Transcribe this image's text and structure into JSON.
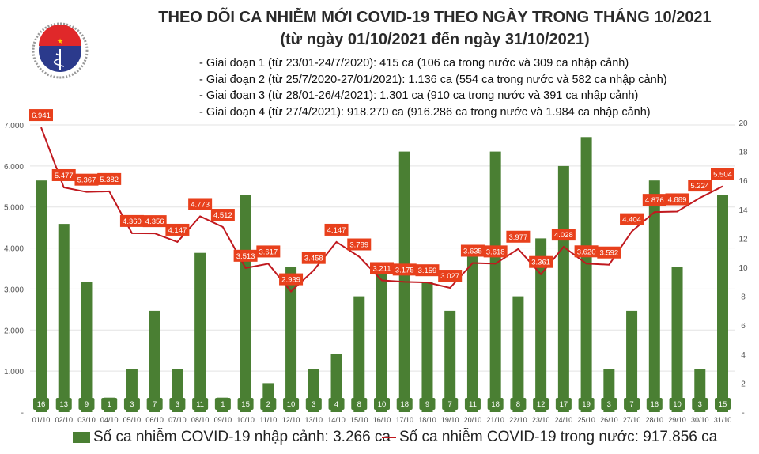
{
  "header": {
    "title_line1": "THEO DÕI CA NHIỄM MỚI COVID-19 THEO NGÀY TRONG THÁNG 10/2021",
    "title_line2": "(từ ngày 01/10/2021 đến ngày 31/10/2021)",
    "notes": [
      "- Giai đoạn 1 (từ 23/01-24/7/2020): 415 ca (106 ca trong nước và 309 ca nhập cảnh)",
      "- Giai đoạn 2 (từ 25/7/2020-27/01/2021): 1.136 ca (554 ca trong nước và 582 ca nhập cảnh)",
      "- Giai đoạn 3 (từ 28/01-26/4/2021): 1.301 ca (910 ca trong nước và 391 ca nhập cảnh)",
      "- Giai đoạn 4 (từ 27/4/2021): 918.270 ca (916.286 ca trong nước và 1.984 ca nhập cảnh)"
    ]
  },
  "logo": {
    "text_top": "BỘ Y TẾ",
    "text_bottom": "MINISTRY OF HEALTH"
  },
  "chart_data": {
    "type": "bar+line",
    "categories": [
      "01/10",
      "02/10",
      "03/10",
      "04/10",
      "05/10",
      "06/10",
      "07/10",
      "08/10",
      "09/10",
      "10/10",
      "11/10",
      "12/10",
      "13/10",
      "14/10",
      "15/10",
      "16/10",
      "17/10",
      "18/10",
      "19/10",
      "20/10",
      "21/10",
      "22/10",
      "23/10",
      "24/10",
      "25/10",
      "26/10",
      "27/10",
      "28/10",
      "29/10",
      "30/10",
      "31/10"
    ],
    "series": [
      {
        "name": "Số ca nhiễm COVID-19 nhập cảnh: 3.266 ca",
        "type": "bar",
        "axis": "right",
        "color": "#4a7f33",
        "values": [
          16,
          13,
          9,
          1,
          3,
          7,
          3,
          11,
          1,
          15,
          2,
          10,
          3,
          4,
          8,
          10,
          18,
          9,
          7,
          11,
          18,
          8,
          12,
          17,
          19,
          3,
          7,
          16,
          10,
          3,
          15
        ]
      },
      {
        "name": "Số ca nhiễm COVID-19 trong nước: 917.856 ca",
        "type": "line",
        "axis": "left",
        "color": "#c0181e",
        "label_color": "#e8401c",
        "values": [
          6941,
          5477,
          5367,
          5382,
          4360,
          4356,
          4147,
          4773,
          4512,
          3513,
          3617,
          2939,
          3458,
          4147,
          3789,
          3211,
          3175,
          3159,
          3027,
          3635,
          3618,
          3977,
          3361,
          4028,
          3620,
          3592,
          4404,
          4876,
          4889,
          5224,
          5504
        ]
      }
    ],
    "left_axis": {
      "ylim": [
        0,
        7000
      ],
      "ticks": [
        "-",
        "1.000",
        "2.000",
        "3.000",
        "4.000",
        "5.000",
        "6.000",
        "7.000"
      ]
    },
    "right_axis": {
      "ylim": [
        0,
        20
      ],
      "ticks": [
        "-",
        "2",
        "4",
        "6",
        "8",
        "10",
        "12",
        "14",
        "16",
        "18",
        "20"
      ]
    },
    "grid": true,
    "legend": "bottom"
  }
}
